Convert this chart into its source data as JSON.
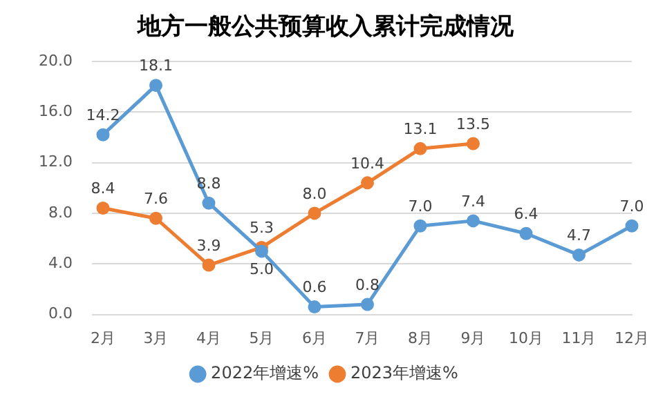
{
  "chart_data": {
    "type": "line",
    "title": "地方一般公共预算收入累计完成情况",
    "categories": [
      "2月",
      "3月",
      "4月",
      "5月",
      "6月",
      "7月",
      "8月",
      "9月",
      "10月",
      "11月",
      "12月"
    ],
    "series": [
      {
        "name": "2022年增速%",
        "color": "#5b9bd5",
        "values": [
          14.2,
          18.1,
          8.8,
          5.0,
          0.6,
          0.8,
          7.0,
          7.4,
          6.4,
          4.7,
          7.0
        ],
        "value_labels": [
          "14.2",
          "18.1",
          "8.8",
          "5.0",
          "0.6",
          "0.8",
          "7.0",
          "7.4",
          "6.4",
          "4.7",
          "7.0"
        ]
      },
      {
        "name": "2023年增速%",
        "color": "#ed7d31",
        "values": [
          8.4,
          7.6,
          3.9,
          5.3,
          8.0,
          10.4,
          13.1,
          13.5,
          null,
          null,
          null
        ],
        "value_labels": [
          "8.4",
          "7.6",
          "3.9",
          "5.3",
          "8.0",
          "10.4",
          "13.1",
          "13.5",
          null,
          null,
          null
        ]
      }
    ],
    "ylim": [
      0,
      20
    ],
    "yticks": [
      {
        "value": 0,
        "label": "0.0"
      },
      {
        "value": 4,
        "label": "4.0"
      },
      {
        "value": 8,
        "label": "8.0"
      },
      {
        "value": 12,
        "label": "12.0"
      },
      {
        "value": 16,
        "label": "16.0"
      },
      {
        "value": 20,
        "label": "20.0"
      }
    ],
    "grid": "y",
    "legend": "bottom",
    "marker": "circle",
    "line_style": "solid"
  }
}
